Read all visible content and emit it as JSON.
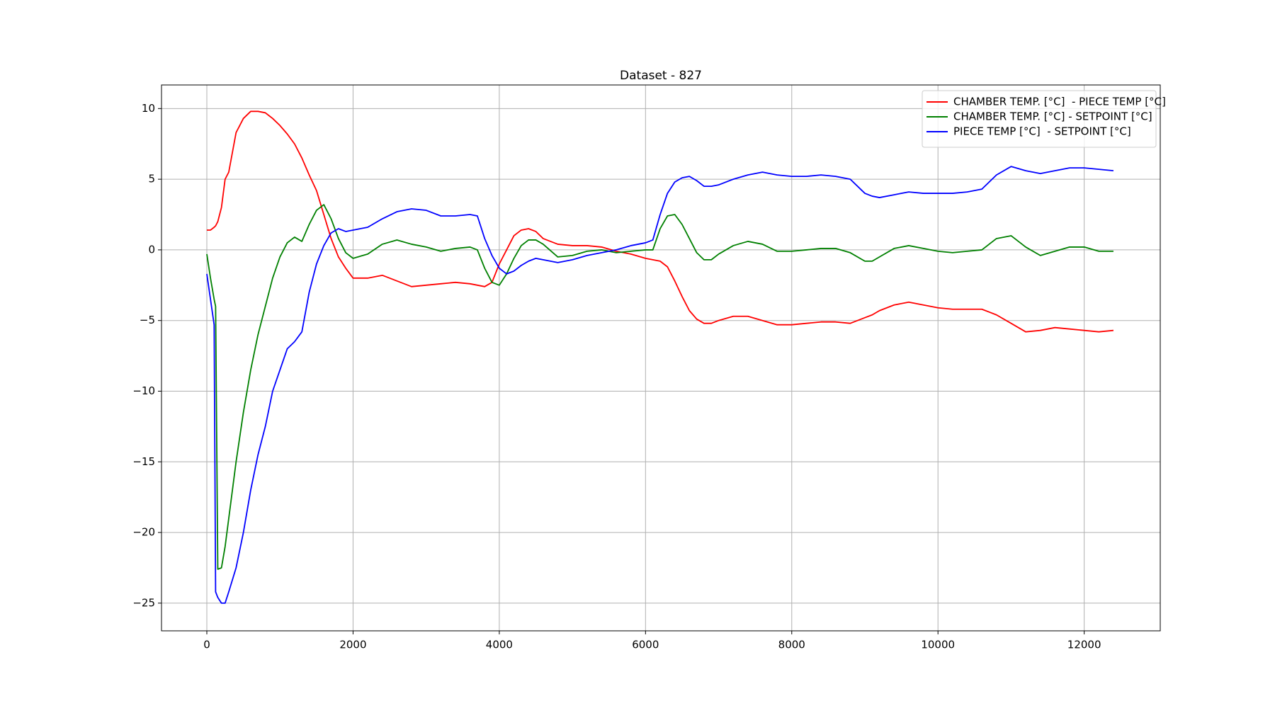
{
  "chart_data": {
    "type": "line",
    "title": "Dataset - 827",
    "x": [
      0,
      50,
      100,
      120,
      150,
      200,
      250,
      300,
      400,
      500,
      600,
      700,
      800,
      900,
      1000,
      1100,
      1200,
      1300,
      1400,
      1500,
      1600,
      1700,
      1800,
      1900,
      2000,
      2200,
      2400,
      2600,
      2800,
      3000,
      3200,
      3400,
      3600,
      3700,
      3800,
      3900,
      4000,
      4100,
      4200,
      4300,
      4400,
      4500,
      4600,
      4800,
      5000,
      5200,
      5400,
      5600,
      5800,
      6000,
      6100,
      6200,
      6300,
      6400,
      6500,
      6600,
      6700,
      6800,
      6900,
      7000,
      7200,
      7400,
      7600,
      7800,
      8000,
      8200,
      8400,
      8600,
      8800,
      9000,
      9100,
      9200,
      9400,
      9600,
      9800,
      10000,
      10200,
      10400,
      10600,
      10800,
      11000,
      11200,
      11400,
      11600,
      11800,
      12000,
      12200,
      12400
    ],
    "series": [
      {
        "name": "CHAMBER TEMP. [°C]  - PIECE TEMP [°C]",
        "color": "#ff0000",
        "values": [
          1.4,
          1.4,
          1.6,
          1.7,
          2.0,
          3.0,
          5.0,
          5.5,
          8.3,
          9.3,
          9.8,
          9.8,
          9.7,
          9.3,
          8.8,
          8.2,
          7.5,
          6.5,
          5.3,
          4.2,
          2.5,
          0.8,
          -0.5,
          -1.3,
          -2.0,
          -2.0,
          -1.8,
          -2.2,
          -2.6,
          -2.5,
          -2.4,
          -2.3,
          -2.4,
          -2.5,
          -2.6,
          -2.3,
          -1.0,
          0.0,
          1.0,
          1.4,
          1.5,
          1.3,
          0.8,
          0.4,
          0.3,
          0.3,
          0.2,
          -0.1,
          -0.3,
          -0.6,
          -0.7,
          -0.8,
          -1.2,
          -2.2,
          -3.3,
          -4.3,
          -4.9,
          -5.2,
          -5.2,
          -5.0,
          -4.7,
          -4.7,
          -5.0,
          -5.3,
          -5.3,
          -5.2,
          -5.1,
          -5.1,
          -5.2,
          -4.8,
          -4.6,
          -4.3,
          -3.9,
          -3.7,
          -3.9,
          -4.1,
          -4.2,
          -4.2,
          -4.2,
          -4.6,
          -5.2,
          -5.8,
          -5.7,
          -5.5,
          -5.6,
          -5.7,
          -5.8,
          -5.7
        ]
      },
      {
        "name": "CHAMBER TEMP. [°C] - SETPOINT [°C]",
        "color": "#008000",
        "values": [
          -0.3,
          -2.0,
          -3.5,
          -4.0,
          -22.6,
          -22.5,
          -21.0,
          -19.0,
          -15.0,
          -11.5,
          -8.5,
          -6.0,
          -4.0,
          -2.0,
          -0.5,
          0.5,
          0.9,
          0.6,
          1.8,
          2.8,
          3.2,
          2.2,
          0.8,
          -0.2,
          -0.6,
          -0.3,
          0.4,
          0.7,
          0.4,
          0.2,
          -0.1,
          0.1,
          0.2,
          0.0,
          -1.3,
          -2.3,
          -2.5,
          -1.7,
          -0.6,
          0.3,
          0.7,
          0.7,
          0.4,
          -0.5,
          -0.4,
          -0.1,
          0.0,
          -0.2,
          -0.1,
          0.0,
          0.0,
          1.5,
          2.4,
          2.5,
          1.8,
          0.8,
          -0.2,
          -0.7,
          -0.7,
          -0.3,
          0.3,
          0.6,
          0.4,
          -0.1,
          -0.1,
          0.0,
          0.1,
          0.1,
          -0.2,
          -0.8,
          -0.8,
          -0.5,
          0.1,
          0.3,
          0.1,
          -0.1,
          -0.2,
          -0.1,
          0.0,
          0.8,
          1.0,
          0.2,
          -0.4,
          -0.1,
          0.2,
          0.2,
          -0.1,
          -0.1
        ]
      },
      {
        "name": "PIECE TEMP [°C]  - SETPOINT [°C]",
        "color": "#0000ff",
        "values": [
          -1.7,
          -3.5,
          -5.3,
          -24.2,
          -24.6,
          -25.0,
          -25.0,
          -24.2,
          -22.5,
          -20.0,
          -17.0,
          -14.5,
          -12.5,
          -10.0,
          -8.5,
          -7.0,
          -6.5,
          -5.8,
          -3.0,
          -1.0,
          0.3,
          1.2,
          1.5,
          1.3,
          1.4,
          1.6,
          2.2,
          2.7,
          2.9,
          2.8,
          2.4,
          2.4,
          2.5,
          2.4,
          0.8,
          -0.4,
          -1.3,
          -1.7,
          -1.5,
          -1.1,
          -0.8,
          -0.6,
          -0.7,
          -0.9,
          -0.7,
          -0.4,
          -0.2,
          0.0,
          0.3,
          0.5,
          0.7,
          2.5,
          4.0,
          4.8,
          5.1,
          5.2,
          4.9,
          4.5,
          4.5,
          4.6,
          5.0,
          5.3,
          5.5,
          5.3,
          5.2,
          5.2,
          5.3,
          5.2,
          5.0,
          4.0,
          3.8,
          3.7,
          3.9,
          4.1,
          4.0,
          4.0,
          4.0,
          4.1,
          4.3,
          5.3,
          5.9,
          5.6,
          5.4,
          5.6,
          5.8,
          5.8,
          5.7,
          5.6
        ]
      }
    ],
    "xlim": [
      -620,
      13040
    ],
    "ylim": [
      -26.96,
      11.67
    ],
    "xticks": [
      0,
      2000,
      4000,
      6000,
      8000,
      10000,
      12000
    ],
    "yticks": [
      {
        "value": -25,
        "label": "−25"
      },
      {
        "value": -20,
        "label": "−20"
      },
      {
        "value": -15,
        "label": "−15"
      },
      {
        "value": -10,
        "label": "−10"
      },
      {
        "value": -5,
        "label": "−5"
      },
      0,
      5,
      10
    ],
    "grid": true,
    "legend": "upper right"
  }
}
